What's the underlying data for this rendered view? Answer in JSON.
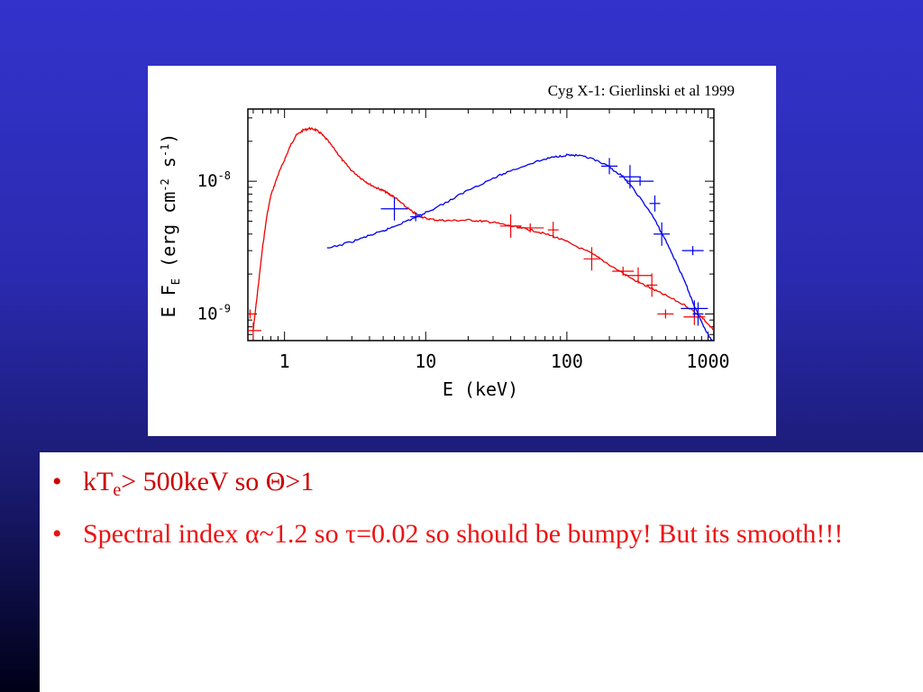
{
  "slide": {
    "bullets": [
      {
        "marker": "•",
        "parts": {
          "a": "kT",
          "sub": "e",
          "b": "> 500keV so Θ>1"
        }
      },
      {
        "marker": "•",
        "text": "Spectral index α~1.2 so τ=0.02 so should be bumpy! But its smooth!!!"
      }
    ]
  },
  "colors": {
    "background": "#3333cc",
    "series_red": "#ee0000",
    "series_blue": "#0000ee",
    "bullet_text": "#cc0000"
  },
  "chart_data": {
    "type": "line",
    "title": "Cyg X-1: Gierlinski et al 1999",
    "xlabel": "E (keV)",
    "ylabel": "E F_E (erg cm^-2 s^-1)",
    "xscale": "log",
    "yscale": "log",
    "xlim": [
      0.55,
      1100
    ],
    "ylim": [
      6.3e-10,
      3.5e-08
    ],
    "xticks": [
      {
        "v": 1,
        "label": "1"
      },
      {
        "v": 10,
        "label": "10"
      },
      {
        "v": 100,
        "label": "100"
      },
      {
        "v": 1000,
        "label": "1000"
      }
    ],
    "yticks": [
      {
        "v": 1e-09,
        "label": "10-9"
      },
      {
        "v": 1e-08,
        "label": "10-8"
      }
    ],
    "grid": false,
    "series": [
      {
        "color": "#ee0000",
        "x": [
          0.6,
          0.65,
          0.7,
          0.75,
          0.8,
          0.9,
          1.0,
          1.1,
          1.2,
          1.35,
          1.5,
          1.65,
          1.8,
          2.0,
          2.3,
          2.6,
          3.0,
          3.5,
          4.0,
          4.5,
          5.0,
          5.5,
          6.0,
          7.0,
          8.0,
          9.0,
          10,
          12,
          15,
          20,
          25,
          30,
          40,
          50,
          60,
          80,
          100,
          150,
          200,
          300,
          400,
          500,
          700,
          900,
          1100
        ],
        "y": [
          7.5e-10,
          1.6e-09,
          3.2e-09,
          5.5e-09,
          7.8e-09,
          1.12e-08,
          1.45e-08,
          1.85e-08,
          2.2e-08,
          2.42e-08,
          2.5e-08,
          2.45e-08,
          2.3e-08,
          2.05e-08,
          1.7e-08,
          1.42e-08,
          1.2e-08,
          1.05e-08,
          9.5e-09,
          8.9e-09,
          8.5e-09,
          8e-09,
          7.6e-09,
          6.6e-09,
          5.9e-09,
          5.5e-09,
          5.25e-09,
          5.1e-09,
          5.05e-09,
          5.1e-09,
          5e-09,
          4.9e-09,
          4.6e-09,
          4.4e-09,
          4.2e-09,
          3.85e-09,
          3.5e-09,
          2.85e-09,
          2.35e-09,
          1.8e-09,
          1.55e-09,
          1.38e-09,
          1.15e-09,
          9.5e-10,
          7.5e-10
        ]
      },
      {
        "color": "#0000ee",
        "x": [
          2,
          3,
          4,
          5,
          6,
          8,
          10,
          15,
          20,
          30,
          40,
          60,
          80,
          100,
          120,
          150,
          200,
          250,
          300,
          400,
          500,
          600,
          700,
          800,
          900,
          1000,
          1100
        ],
        "y": [
          3.1e-09,
          3.5e-09,
          3.9e-09,
          4.2e-09,
          4.6e-09,
          5.2e-09,
          5.8e-09,
          7.2e-09,
          8.6e-09,
          1.05e-08,
          1.2e-08,
          1.4e-08,
          1.52e-08,
          1.58e-08,
          1.56e-08,
          1.48e-08,
          1.28e-08,
          1.08e-08,
          8.6e-09,
          5.6e-09,
          3.6e-09,
          2.4e-09,
          1.65e-09,
          1.15e-09,
          8.7e-10,
          7e-10,
          6e-10
        ]
      }
    ],
    "error_points": [
      {
        "series": 0,
        "x": 0.57,
        "y": 1e-09
      },
      {
        "series": 0,
        "x": 0.6,
        "y": 7.5e-10
      },
      {
        "series": 0,
        "x": 40,
        "y": 4.6e-09
      },
      {
        "series": 0,
        "x": 55,
        "y": 4.45e-09
      },
      {
        "series": 0,
        "x": 80,
        "y": 4.3e-09
      },
      {
        "series": 0,
        "x": 150,
        "y": 2.6e-09
      },
      {
        "series": 0,
        "x": 250,
        "y": 2.1e-09
      },
      {
        "series": 0,
        "x": 320,
        "y": 1.95e-09
      },
      {
        "series": 0,
        "x": 400,
        "y": 1.65e-09
      },
      {
        "series": 0,
        "x": 500,
        "y": 1e-09
      },
      {
        "series": 0,
        "x": 800,
        "y": 9.5e-10
      },
      {
        "series": 1,
        "x": 6,
        "y": 6.2e-09
      },
      {
        "series": 1,
        "x": 8.5,
        "y": 5.4e-09
      },
      {
        "series": 1,
        "x": 200,
        "y": 1.3e-08
      },
      {
        "series": 1,
        "x": 280,
        "y": 1.08e-08
      },
      {
        "series": 1,
        "x": 330,
        "y": 1e-08
      },
      {
        "series": 1,
        "x": 420,
        "y": 6.8e-09
      },
      {
        "series": 1,
        "x": 470,
        "y": 4e-09
      },
      {
        "series": 1,
        "x": 780,
        "y": 3e-09
      },
      {
        "series": 1,
        "x": 800,
        "y": 1.1e-09
      },
      {
        "series": 1,
        "x": 850,
        "y": 1e-09
      }
    ]
  }
}
